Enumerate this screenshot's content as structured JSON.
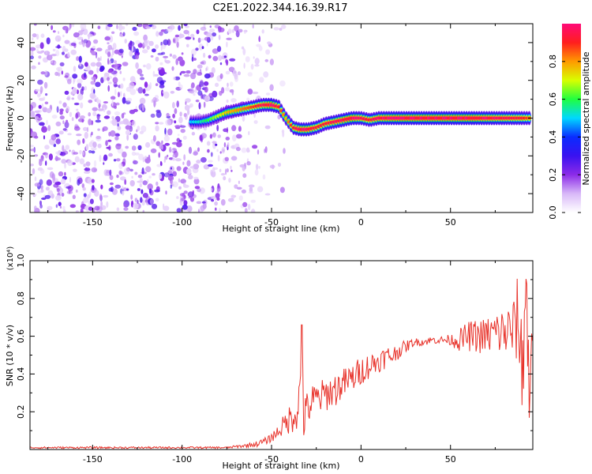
{
  "title": "C2E1.2022.344.16.39.R17",
  "colors": {
    "snr_line": "#e8332b",
    "axis": "#000000",
    "colormap": [
      "#ffffff",
      "#d8b8f8",
      "#8c2be8",
      "#3a12f0",
      "#0a2cff",
      "#00d8ff",
      "#20ff40",
      "#d8ff00",
      "#ff9a00",
      "#ff1e1e",
      "#ff0a78"
    ]
  },
  "chart_data": [
    {
      "type": "heatmap",
      "title": "C2E1.2022.344.16.39.R17",
      "xlabel": "Height of straight line (km)",
      "ylabel": "Frequency (Hz)",
      "xlim": [
        -185,
        96
      ],
      "ylim": [
        -50,
        50
      ],
      "xticks": [
        -150,
        -100,
        -50,
        0,
        50
      ],
      "yticks": [
        -40,
        -20,
        0,
        20,
        40
      ],
      "colorbar": {
        "label": "Normalized spectral amplitude",
        "range": [
          0,
          1
        ],
        "ticks": [
          "0.0",
          "0.2",
          "0.4",
          "0.6",
          "0.8"
        ]
      },
      "noise_region_x": [
        -185,
        -65
      ],
      "ridge": {
        "x": [
          -95,
          -90,
          -85,
          -80,
          -75,
          -70,
          -65,
          -60,
          -55,
          -50,
          -46,
          -42,
          -38,
          -34,
          -30,
          -25,
          -20,
          -15,
          -10,
          -5,
          0,
          5,
          10,
          20,
          30,
          40,
          50,
          60,
          70,
          80,
          90,
          95
        ],
        "y": [
          -2,
          -2,
          -1,
          1,
          3,
          4,
          5,
          6,
          7,
          7,
          6,
          0,
          -5,
          -6,
          -6,
          -5,
          -3,
          -2,
          -1,
          0,
          0,
          -1,
          0,
          0,
          0,
          0,
          0,
          0,
          0,
          0,
          0,
          0
        ],
        "amplitude": [
          0.25,
          0.3,
          0.4,
          0.5,
          0.6,
          0.65,
          0.7,
          0.75,
          0.85,
          0.95,
          0.8,
          0.6,
          0.8,
          0.9,
          0.9,
          0.8,
          0.8,
          0.85,
          0.9,
          0.95,
          0.85,
          0.8,
          0.9,
          0.95,
          0.95,
          0.95,
          0.95,
          0.95,
          0.9,
          0.85,
          0.8,
          0.7
        ]
      }
    },
    {
      "type": "line",
      "xlabel": "Height of straight line (km)",
      "ylabel": "SNR (10 * v/v)",
      "y_multiplier": "(x10⁴)",
      "xlim": [
        -185,
        96
      ],
      "ylim": [
        0,
        1.0
      ],
      "xticks": [
        -150,
        -100,
        -50,
        0,
        50
      ],
      "yticks": [
        0.2,
        0.4,
        0.6,
        0.8,
        1.0
      ],
      "series": [
        {
          "x": [
            -185,
            -170,
            -150,
            -130,
            -110,
            -90,
            -75,
            -65,
            -58,
            -52,
            -48,
            -44,
            -40,
            -36,
            -34,
            -33,
            -32,
            -30,
            -26,
            -22,
            -18,
            -14,
            -10,
            -6,
            -2,
            2,
            6,
            10,
            14,
            18,
            22,
            26,
            30,
            35,
            40,
            45,
            50,
            55,
            60,
            65,
            70,
            75,
            80,
            85,
            88,
            90,
            92,
            94,
            96
          ],
          "y": [
            0.01,
            0.01,
            0.01,
            0.01,
            0.01,
            0.01,
            0.01,
            0.02,
            0.03,
            0.05,
            0.08,
            0.12,
            0.16,
            0.2,
            0.3,
            0.66,
            0.15,
            0.22,
            0.26,
            0.28,
            0.3,
            0.32,
            0.35,
            0.37,
            0.4,
            0.43,
            0.45,
            0.47,
            0.49,
            0.5,
            0.53,
            0.55,
            0.57,
            0.57,
            0.58,
            0.58,
            0.58,
            0.58,
            0.6,
            0.6,
            0.6,
            0.62,
            0.62,
            0.63,
            0.7,
            0.4,
            0.9,
            0.3,
            0.9
          ],
          "noise_amplitude": [
            0.005,
            0.005,
            0.005,
            0.005,
            0.005,
            0.005,
            0.005,
            0.01,
            0.015,
            0.02,
            0.03,
            0.05,
            0.08,
            0.1,
            0.12,
            0.0,
            0.1,
            0.1,
            0.1,
            0.09,
            0.09,
            0.09,
            0.08,
            0.08,
            0.08,
            0.07,
            0.07,
            0.06,
            0.06,
            0.05,
            0.04,
            0.03,
            0.02,
            0.02,
            0.02,
            0.02,
            0.03,
            0.06,
            0.08,
            0.09,
            0.1,
            0.12,
            0.14,
            0.16,
            0.25,
            0.3,
            0.35,
            0.4,
            0.4
          ]
        }
      ]
    }
  ]
}
